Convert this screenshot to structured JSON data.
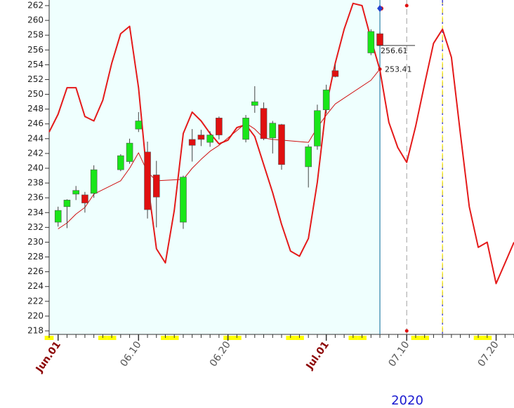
{
  "chart_data": {
    "type": "candlestick",
    "year_label": "2020",
    "ylim": [
      218,
      262
    ],
    "yticks": [
      218,
      220,
      222,
      224,
      226,
      228,
      230,
      232,
      234,
      236,
      238,
      240,
      242,
      244,
      246,
      248,
      250,
      252,
      254,
      256,
      258,
      260,
      262
    ],
    "xlim": [
      "2020-05-31",
      "2020-07-22"
    ],
    "xticks": [
      {
        "value": "2020-06-01",
        "label": "Jun.01"
      },
      {
        "value": "2020-06-10",
        "label": "06.10"
      },
      {
        "value": "2020-06-20",
        "label": "06.20"
      },
      {
        "value": "2020-07-01",
        "label": "Jul.01"
      },
      {
        "value": "2020-07-10",
        "label": "07.10"
      },
      {
        "value": "2020-07-20",
        "label": "07.20"
      }
    ],
    "up_color": "#19e619",
    "down_color": "#e01010",
    "background_color": "#effffe",
    "x": [
      "2020-06-01",
      "2020-06-02",
      "2020-06-03",
      "2020-06-04",
      "2020-06-05",
      "2020-06-08",
      "2020-06-09",
      "2020-06-10",
      "2020-06-11",
      "2020-06-12",
      "2020-06-15",
      "2020-06-16",
      "2020-06-17",
      "2020-06-18",
      "2020-06-19",
      "2020-06-22",
      "2020-06-23",
      "2020-06-24",
      "2020-06-25",
      "2020-06-26",
      "2020-06-29",
      "2020-06-30",
      "2020-07-01",
      "2020-07-02",
      "2020-07-06",
      "2020-07-07"
    ],
    "open": [
      232.7,
      234.8,
      236.5,
      236.4,
      236.6,
      239.8,
      240.9,
      245.3,
      242.2,
      239.1,
      232.7,
      243.9,
      244.5,
      243.5,
      246.8,
      243.9,
      248.5,
      248.1,
      244.1,
      245.9,
      240.2,
      243.0,
      247.9,
      253.2,
      255.6,
      258.2
    ],
    "high": [
      234.8,
      235.8,
      237.6,
      236.8,
      240.4,
      241.9,
      244.0,
      247.6,
      243.6,
      241.0,
      239.0,
      245.3,
      245.2,
      245.0,
      247.0,
      247.2,
      251.1,
      248.9,
      246.4,
      246.0,
      243.2,
      248.6,
      251.3,
      254.0,
      258.8,
      258.4
    ],
    "low": [
      232.1,
      231.9,
      235.7,
      234.0,
      236.0,
      239.6,
      240.6,
      244.9,
      233.2,
      232.0,
      231.8,
      240.9,
      243.0,
      242.9,
      243.9,
      243.5,
      247.5,
      243.8,
      242.0,
      239.8,
      237.4,
      242.5,
      247.4,
      252.3,
      255.3,
      256.6
    ],
    "close": [
      234.3,
      235.7,
      237.0,
      235.3,
      239.8,
      241.7,
      243.4,
      246.4,
      234.4,
      236.1,
      238.8,
      243.1,
      243.9,
      244.5,
      244.5,
      246.8,
      249.0,
      244.0,
      246.1,
      240.5,
      242.9,
      247.8,
      250.6,
      252.4,
      258.5,
      256.61
    ],
    "ma": {
      "color": "#d01010",
      "values": [
        231.8,
        232.6,
        233.8,
        234.7,
        236.5,
        238.3,
        240.0,
        242.1,
        239.5,
        238.3,
        238.5,
        240.0,
        241.2,
        242.3,
        243.1,
        246.1,
        245.3,
        244.1,
        243.9,
        243.8,
        243.5,
        245.5,
        247.2,
        248.7,
        251.9,
        253.41
      ]
    },
    "wave": {
      "color": "#e41a1a",
      "x": [
        "2020-05-31",
        "2020-06-01",
        "2020-06-02",
        "2020-06-03",
        "2020-06-04",
        "2020-06-05",
        "2020-06-06",
        "2020-06-07",
        "2020-06-08",
        "2020-06-09",
        "2020-06-10",
        "2020-06-11",
        "2020-06-12",
        "2020-06-13",
        "2020-06-14",
        "2020-06-15",
        "2020-06-16",
        "2020-06-17",
        "2020-06-18",
        "2020-06-19",
        "2020-06-20",
        "2020-06-21",
        "2020-06-22",
        "2020-06-23",
        "2020-06-24",
        "2020-06-25",
        "2020-06-26",
        "2020-06-27",
        "2020-06-28",
        "2020-06-29",
        "2020-06-30",
        "2020-07-01",
        "2020-07-02",
        "2020-07-03",
        "2020-07-04",
        "2020-07-05",
        "2020-07-06",
        "2020-07-07",
        "2020-07-08",
        "2020-07-09",
        "2020-07-10",
        "2020-07-11",
        "2020-07-12",
        "2020-07-13",
        "2020-07-14",
        "2020-07-15",
        "2020-07-16",
        "2020-07-17",
        "2020-07-18",
        "2020-07-19",
        "2020-07-20",
        "2020-07-21",
        "2020-07-22"
      ],
      "values": [
        244.9,
        247.3,
        250.9,
        250.9,
        247.0,
        246.4,
        249.2,
        254.2,
        258.2,
        259.2,
        250.9,
        238.3,
        229.1,
        227.2,
        234.3,
        244.7,
        247.6,
        246.4,
        244.7,
        243.3,
        243.8,
        245.5,
        245.9,
        244.3,
        240.5,
        236.7,
        232.4,
        228.8,
        228.1,
        230.5,
        238.1,
        248.5,
        254.2,
        258.8,
        262.3,
        262.0,
        257.5,
        253.3,
        246.2,
        242.8,
        240.8,
        245.7,
        251.4,
        256.9,
        258.8,
        255.0,
        244.7,
        234.8,
        229.3,
        230.0,
        224.4,
        227.2,
        230.0
      ]
    },
    "markers": [
      {
        "x": "2020-07-07",
        "color": "#2a7fa8",
        "dash": "none"
      },
      {
        "x": "2020-07-10",
        "color": "#b0b0b0",
        "dash": "8 5"
      },
      {
        "x": "2020-07-14",
        "color": "#1a1ac0",
        "dash": "8 5"
      }
    ]
  }
}
